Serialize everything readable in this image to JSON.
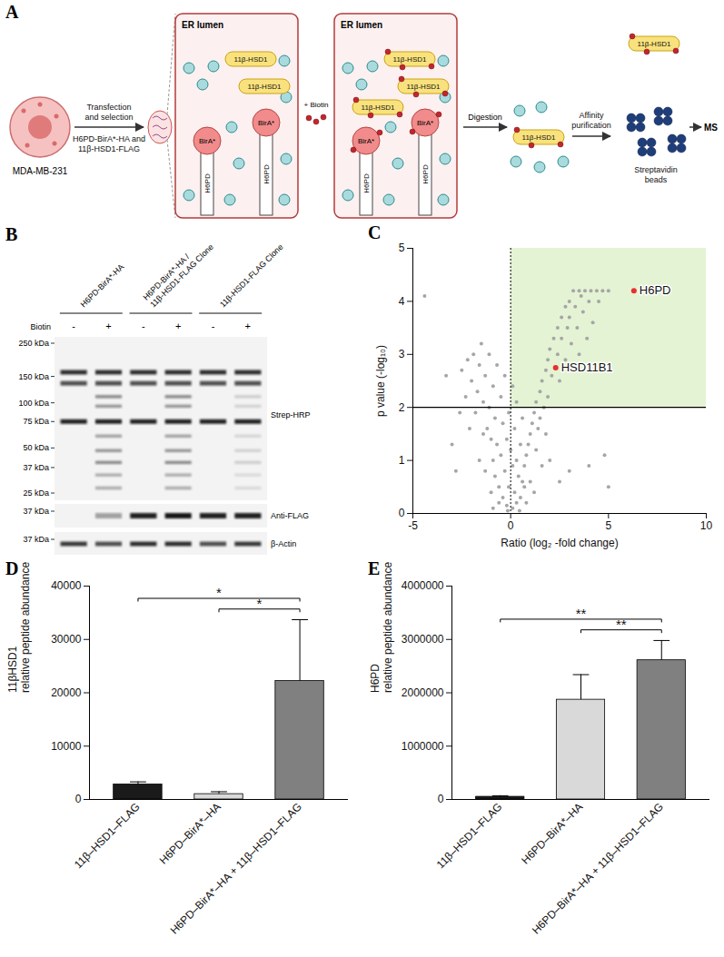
{
  "diagram": {
    "panel": "A",
    "cell": "MDA-MB-231",
    "step1": {
      "above": "Transfection and selection",
      "below": "H6PD-BirA*-HA and 11β-HSD1-FLAG"
    },
    "box1": {
      "title": "ER lumen",
      "enzymes": [
        "11β-HSD1",
        "11β-HSD1"
      ],
      "anchors": [
        {
          "ligase": "BirA*",
          "protein": "H6PD"
        },
        {
          "ligase": "BirA*",
          "protein": "H6PD"
        }
      ]
    },
    "treatment": "+ Biotin",
    "box2": {
      "title": "ER lumen",
      "enzymes": [
        "11β-HSD1",
        "11β-HSD1",
        "11β-HSD1"
      ],
      "anchors": [
        {
          "ligase": "BirA*",
          "protein": "H6PD"
        },
        {
          "ligase": "BirA*",
          "protein": "H6PD"
        }
      ]
    },
    "step2": "Digestion",
    "digested": "11β-HSD1",
    "step3": "Affinity purification",
    "beads": "Streptavidin beads",
    "purified": "11β-HSD1",
    "readout": "MS"
  },
  "blot": {
    "panel": "B",
    "lanes": [
      {
        "label": "H6PD-BirA*-HA",
        "signs": [
          "-",
          "+"
        ]
      },
      {
        "label": "H6PD-BirA*-HA / 11β-HSD1-FLAG Clone",
        "signs": [
          "-",
          "+"
        ]
      },
      {
        "label": "11β-HSD1-FLAG Clone",
        "signs": [
          "-",
          "+"
        ]
      }
    ],
    "treatment": "Biotin",
    "strips": [
      {
        "label": "Strep-HRP",
        "markers": [
          {
            "value": 250,
            "label": "250 kDa"
          },
          {
            "value": 150,
            "label": "150 kDa"
          },
          {
            "value": 100,
            "label": "100 kDa"
          },
          {
            "value": 75,
            "label": "75 kDa"
          },
          {
            "value": 50,
            "label": "50 kDa"
          },
          {
            "value": 37,
            "label": "37 kDa"
          },
          {
            "value": 25,
            "label": "25 kDa"
          }
        ]
      },
      {
        "label": "Anti-FLAG",
        "markers": [
          {
            "value": 37,
            "label": "37 kDa"
          }
        ]
      },
      {
        "label": "β-Actin",
        "markers": [
          {
            "value": 37,
            "label": "37 kDa"
          }
        ]
      }
    ]
  },
  "chart_data": [
    {
      "panel": "C",
      "type": "scatter",
      "x_label": "Ratio (log₂ -fold change)",
      "y_label": "p value (-log₁₀)",
      "x": [
        3.2,
        3.5,
        3.8,
        4.1,
        4.4,
        4.7,
        5.0,
        3.6,
        4.0,
        4.5,
        3.0,
        2.8,
        3.3,
        2.6,
        3.0,
        3.7,
        2.4,
        2.9,
        3.4,
        2.2,
        2.6,
        3.1,
        2.0,
        2.4,
        1.9,
        2.8,
        1.8,
        2.1,
        1.6,
        2.5,
        1.5,
        1.9,
        1.3,
        1.7,
        3.5,
        4.2,
        3.9,
        1.2,
        1.5,
        1.1,
        1.4,
        1.0,
        1.8,
        0.9,
        1.3,
        0.8,
        2.0,
        1.6,
        3.0,
        4.0,
        4.8,
        5.0,
        2.5,
        0.7,
        0.1,
        0.3,
        -0.2,
        0.5,
        -0.4,
        0.2,
        -0.1,
        0.6,
        -0.6,
        0.4,
        -0.3,
        0.1,
        0.7,
        -0.8,
        0.3,
        -0.5,
        0.0,
        -0.9,
        0.5,
        -0.2,
        -0.7,
        0.2,
        -1.0,
        -0.4,
        0.6,
        -1.2,
        -0.1,
        -0.8,
        0.3,
        -1.1,
        -0.5,
        -1.4,
        0.1,
        -0.9,
        -1.3,
        -0.3,
        -1.6,
        -0.7,
        -1.9,
        -1.1,
        -2.2,
        -1.5,
        -2.5,
        -2.0,
        -1.7,
        -2.3,
        -1.8,
        -1.4,
        -2.1,
        -2.6,
        -0.6,
        0.8,
        -1.0,
        1.0,
        -1.3,
        1.2,
        -1.6,
        -0.15,
        0.45,
        -0.9,
        -4.4,
        -3.3,
        -3.0,
        -2.8
      ],
      "values": [
        4.2,
        4.2,
        4.2,
        4.2,
        4.2,
        4.2,
        4.2,
        4.1,
        4.0,
        4.0,
        4.0,
        3.9,
        3.9,
        3.7,
        3.7,
        3.8,
        3.5,
        3.5,
        3.5,
        3.3,
        3.3,
        3.2,
        3.1,
        3.0,
        2.9,
        2.9,
        2.7,
        2.6,
        2.5,
        2.5,
        2.3,
        2.2,
        2.1,
        2.0,
        3.0,
        3.6,
        3.3,
        1.9,
        1.8,
        1.7,
        1.6,
        1.5,
        1.5,
        1.3,
        1.2,
        1.1,
        1.0,
        0.9,
        0.8,
        0.9,
        1.1,
        0.5,
        0.6,
        0.9,
        0.1,
        0.2,
        0.15,
        0.3,
        0.3,
        0.4,
        0.5,
        0.6,
        0.5,
        0.7,
        0.8,
        0.9,
        0.5,
        0.7,
        1.0,
        1.1,
        1.2,
        1.0,
        1.3,
        1.4,
        1.3,
        1.6,
        1.4,
        1.7,
        1.8,
        1.6,
        1.9,
        1.8,
        2.1,
        2.0,
        2.2,
        2.1,
        2.4,
        2.4,
        2.6,
        2.6,
        2.8,
        2.8,
        3.0,
        3.0,
        2.9,
        3.2,
        2.7,
        2.5,
        2.3,
        2.2,
        1.9,
        1.5,
        1.6,
        1.9,
        0.2,
        0.2,
        0.4,
        0.6,
        0.8,
        0.4,
        1.0,
        0.05,
        0.05,
        0.1,
        4.1,
        2.6,
        1.3,
        0.8
      ],
      "color": "#a6a6a6",
      "xlim": [
        -5,
        10
      ],
      "xticks": [
        -5,
        0,
        5,
        10
      ],
      "ylim": [
        0,
        5
      ],
      "yticks": [
        0,
        1,
        2,
        3,
        4,
        5
      ],
      "reference_lines": {
        "x": 0,
        "y": 2
      },
      "region": {
        "x": [
          0,
          10
        ],
        "y": [
          2,
          5
        ],
        "color": "#e4f3d3"
      },
      "highlights": [
        {
          "label": "H6PD",
          "x": 6.3,
          "y": 4.2,
          "color": "#e8302f"
        },
        {
          "label": "HSD11B1",
          "x": 2.3,
          "y": 2.75,
          "color": "#e8302f"
        }
      ]
    },
    {
      "panel": "D",
      "type": "bar",
      "y_label": "11βHSD1 relative peptide abundance",
      "categories": [
        "11β–HSD1–FLAG",
        "H6PD–BirA*–HA",
        "H6PD–BirA*–HA + 11β–HSD1–FLAG"
      ],
      "values": [
        2800,
        1000,
        22200
      ],
      "errors": [
        500,
        450,
        11500
      ],
      "colors": [
        "#1a1a1a",
        "#d9d9d9",
        "#808080"
      ],
      "ylim": [
        0,
        40000
      ],
      "yticks": [
        0,
        10000,
        20000,
        30000,
        40000
      ],
      "significance": [
        {
          "from": "H6PD–BirA*–HA",
          "to": "H6PD–BirA*–HA + 11β–HSD1–FLAG",
          "label": "*"
        },
        {
          "from": "11β–HSD1–FLAG",
          "to": "H6PD–BirA*–HA + 11β–HSD1–FLAG",
          "label": "*"
        }
      ]
    },
    {
      "panel": "E",
      "type": "bar",
      "y_label": "H6PD relative peptide abundance",
      "categories": [
        "11β–HSD1–FLAG",
        "H6PD–BirA*–HA",
        "H6PD–BirA*–HA + 11β–HSD1–FLAG"
      ],
      "values": [
        50000,
        1870000,
        2610000
      ],
      "errors": [
        20000,
        470000,
        370000
      ],
      "colors": [
        "#1a1a1a",
        "#d9d9d9",
        "#808080"
      ],
      "ylim": [
        0,
        4000000
      ],
      "yticks": [
        0,
        1000000,
        2000000,
        3000000,
        4000000
      ],
      "significance": [
        {
          "from": "H6PD–BirA*–HA",
          "to": "H6PD–BirA*–HA + 11β–HSD1–FLAG",
          "label": "**"
        },
        {
          "from": "11β–HSD1–FLAG",
          "to": "H6PD–BirA*–HA + 11β–HSD1–FLAG",
          "label": "**"
        }
      ]
    }
  ]
}
